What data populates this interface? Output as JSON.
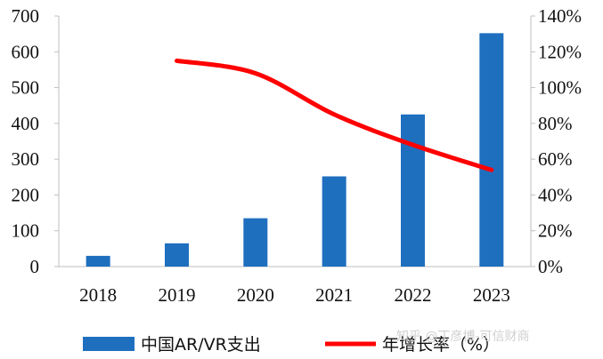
{
  "chart_data": {
    "type": "bar",
    "categories": [
      "2018",
      "2019",
      "2020",
      "2021",
      "2022",
      "2023"
    ],
    "series": [
      {
        "name": "中国AR/VR支出",
        "type": "bar",
        "axis": "left",
        "color": "#1f6fbf",
        "values": [
          30,
          65,
          135,
          252,
          425,
          652
        ]
      },
      {
        "name": "年增长率（%）",
        "type": "line",
        "axis": "right",
        "color": "#ff0000",
        "values": [
          null,
          115,
          108,
          85,
          68,
          54
        ]
      }
    ],
    "y_left": {
      "min": 0,
      "max": 700,
      "step": 100,
      "tick_labels": [
        "0",
        "100",
        "200",
        "300",
        "400",
        "500",
        "600",
        "700"
      ]
    },
    "y_right": {
      "min": 0,
      "max": 140,
      "step": 20,
      "tick_labels": [
        "0%",
        "20%",
        "40%",
        "60%",
        "80%",
        "100%",
        "120%",
        "140%"
      ]
    },
    "grid": false,
    "legend_position": "bottom"
  },
  "watermark": "知乎 @丁彦博-可信财商"
}
